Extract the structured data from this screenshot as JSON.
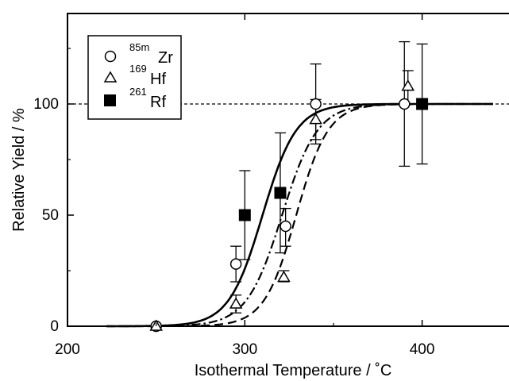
{
  "chart_data": {
    "type": "scatter",
    "xlabel": "Isothermal Temperature / ˚C",
    "ylabel": "Relative Yield / %",
    "xlim": [
      200,
      440
    ],
    "ylim": [
      0,
      142
    ],
    "x_ticks": [
      200,
      300,
      400
    ],
    "y_ticks": [
      0,
      50,
      100
    ],
    "x_tick_labels": [
      "200",
      "300",
      "400"
    ],
    "y_tick_labels": [
      "0",
      "50",
      "100"
    ],
    "reference_line": {
      "y": 100,
      "style": "dotted"
    },
    "legend_position": "top-left",
    "legend": [
      {
        "mass": "85m",
        "element": "Zr",
        "marker": "open-circle"
      },
      {
        "mass": "169",
        "element": "Hf",
        "marker": "open-triangle"
      },
      {
        "mass": "261",
        "element": "Rf",
        "marker": "filled-square"
      }
    ],
    "series": [
      {
        "marker": "open-circle",
        "points": [
          {
            "x": 250,
            "y": 0,
            "err_low": null,
            "err_high": null
          },
          {
            "x": 295,
            "y": 28,
            "err_low": 20,
            "err_high": 36
          },
          {
            "x": 323,
            "y": 45,
            "err_low": 36,
            "err_high": 53
          },
          {
            "x": 340,
            "y": 100,
            "err_low": 82,
            "err_high": 118
          },
          {
            "x": 390,
            "y": 100,
            "err_low": 72,
            "err_high": 128
          }
        ]
      },
      {
        "marker": "open-triangle",
        "points": [
          {
            "x": 250,
            "y": 0,
            "err_low": null,
            "err_high": null
          },
          {
            "x": 295,
            "y": 10,
            "err_low": 6,
            "err_high": 14
          },
          {
            "x": 322,
            "y": 22,
            "err_low": 20,
            "err_high": 25
          },
          {
            "x": 340,
            "y": 93,
            "err_low": 84,
            "err_high": 102
          },
          {
            "x": 392,
            "y": 108,
            "err_low": 100,
            "err_high": 115
          }
        ]
      },
      {
        "marker": "filled-square",
        "points": [
          {
            "x": 300,
            "y": 50,
            "err_low": 30,
            "err_high": 70
          },
          {
            "x": 320,
            "y": 60,
            "err_low": 33,
            "err_high": 87
          },
          {
            "x": 400,
            "y": 100,
            "err_low": 73,
            "err_high": 127
          }
        ]
      }
    ],
    "fit_curves": [
      {
        "style": "solid",
        "midpoint": 310,
        "width": 9.5,
        "x_start": 222,
        "x_end": 440
      },
      {
        "style": "dashdot",
        "midpoint": 321,
        "width": 10,
        "x_start": 222,
        "x_end": 440
      },
      {
        "style": "dashed",
        "midpoint": 329,
        "width": 9,
        "x_start": 222,
        "x_end": 440
      }
    ]
  }
}
